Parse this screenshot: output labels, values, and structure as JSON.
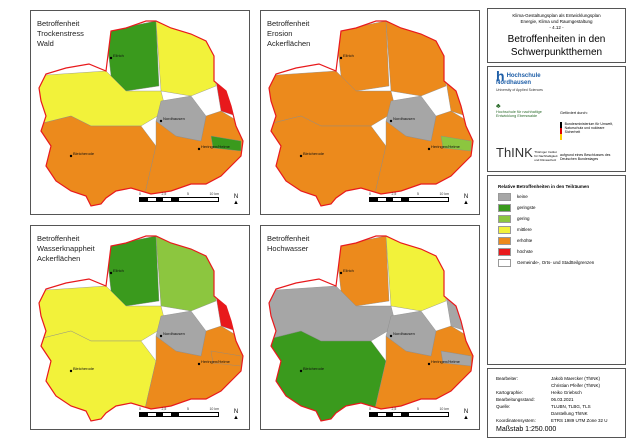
{
  "legend_colors": {
    "keine": "#a6a6a6",
    "geringste": "#3a9a1d",
    "gering": "#8cc63f",
    "mittlere": "#f2f23a",
    "erhoehte": "#ec8a1c",
    "hoechste": "#e8191c",
    "grenzen": "#ffffff"
  },
  "panels": [
    {
      "title": "Betroffenheit\nTrockenstress\nWald",
      "regions": {
        "nw": "geringste",
        "ne": "mittlere",
        "wm": "mittlere",
        "center": "keine",
        "east": "hoechste",
        "sw": "erhoehte",
        "se": "erhoehte",
        "es": "geringste"
      }
    },
    {
      "title": "Betroffenheit\nErosion\nAckerflächen",
      "regions": {
        "nw": "erhoehte",
        "ne": "erhoehte",
        "wm": "erhoehte",
        "center": "keine",
        "east": "erhoehte",
        "sw": "erhoehte",
        "se": "erhoehte",
        "es": "gering"
      }
    },
    {
      "title": "Betroffenheit\nWasserknappheit\nAckerflächen",
      "regions": {
        "nw": "geringste",
        "ne": "gering",
        "wm": "mittlere",
        "center": "keine",
        "east": "hoechste",
        "sw": "mittlere",
        "se": "erhoehte",
        "es": "erhoehte"
      }
    },
    {
      "title": "Betroffenheit\nHochwasser",
      "regions": {
        "nw": "erhoehte",
        "ne": "mittlere",
        "wm": "keine",
        "center": "keine",
        "east": "keine",
        "sw": "geringste",
        "se": "erhoehte",
        "es": "keine"
      }
    }
  ],
  "cities": {
    "ellrich": "Ellrich",
    "nordhausen": "Nordhausen",
    "bleicherode": "Bleicherode",
    "heringen": "Heringen/Helme"
  },
  "scale": {
    "ticks": [
      "0",
      "2,5",
      "5",
      "10 km"
    ],
    "north": "N"
  },
  "header": {
    "subtitle_1": "Klima-Gestaltungsplan als Entwicklungsplan",
    "subtitle_2": "Energie, Klima und Raumgestaltung",
    "subtitle_3": "- 4.12 -",
    "title": "Betroffenheiten in den Schwerpunktthemen"
  },
  "logos": {
    "hsn_1": "Hochschule",
    "hsn_2": "Nordhausen",
    "hsn_3": "University of Applied Sciences",
    "hnee": "Hochschule für nachhaltige Entwicklung Eberswalde",
    "gefoerdert": "Gefördert durch:",
    "bmu": "Bundesministerium für Umwelt, Naturschutz und nukleare Sicherheit",
    "think": "ThINK",
    "think_sub": "Thüringer Institut für Nachhaltigkeit und Klimaschutz",
    "beschluss": "aufgrund eines Beschlusses des Deutschen Bundestages"
  },
  "legend": {
    "title": "Relative Betroffenheiten in den Teilräumen",
    "items": [
      {
        "key": "keine",
        "label": "keine"
      },
      {
        "key": "geringste",
        "label": "geringste"
      },
      {
        "key": "gering",
        "label": "gering"
      },
      {
        "key": "mittlere",
        "label": "mittlere"
      },
      {
        "key": "erhoehte",
        "label": "erhöhte"
      },
      {
        "key": "hoechste",
        "label": "höchste"
      },
      {
        "key": "grenzen",
        "label": "Gemeinde-, Orts- und Stadtteilgrenzen"
      }
    ]
  },
  "meta": {
    "rows": [
      {
        "k": "Bearbeiter:",
        "v": "Jakob Maercker (ThINK)"
      },
      {
        "k": "",
        "v": "Christian Pfeifer (ThINK)"
      },
      {
        "k": "Kartographie:",
        "v": "Heiko Griebsch"
      },
      {
        "k": "Bearbeitungsstand:",
        "v": "06.03.2021"
      },
      {
        "k": "Quelle:",
        "v": "TLUBN, TLBG, TLS"
      },
      {
        "k": "",
        "v": "Darstellung ThINK"
      },
      {
        "k": "Koordinatensystem:",
        "v": "ETRS 1989 UTM Zone 32 U"
      }
    ],
    "massstab": "Maßstab 1:250.000"
  }
}
